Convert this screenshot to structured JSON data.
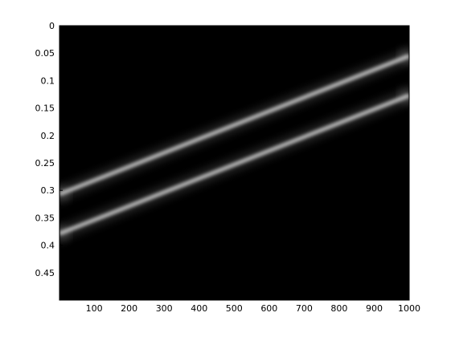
{
  "chart_data": {
    "type": "heatmap",
    "title": "",
    "xlabel": "",
    "ylabel": "",
    "colormap": "gray",
    "background_color": "#000000",
    "band_color": "#bdbdbd",
    "grid": false,
    "legend": "none",
    "xlim": [
      1,
      1000
    ],
    "ylim": [
      0,
      0.5
    ],
    "y_direction": "reversed",
    "x_ticks": [
      100,
      200,
      300,
      400,
      500,
      600,
      700,
      800,
      900,
      1000
    ],
    "x_tick_labels": [
      "100",
      "200",
      "300",
      "400",
      "500",
      "600",
      "700",
      "800",
      "900",
      "1000"
    ],
    "y_ticks": [
      0,
      0.05,
      0.1,
      0.15,
      0.2,
      0.25,
      0.3,
      0.35,
      0.4,
      0.45
    ],
    "y_tick_labels": [
      "0",
      "0.05",
      "0.1",
      "0.15",
      "0.2",
      "0.25",
      "0.3",
      "0.35",
      "0.4",
      "0.45"
    ],
    "series": [
      {
        "x": [
          1,
          1000
        ],
        "y": [
          0.307,
          0.055
        ]
      },
      {
        "x": [
          1,
          1000
        ],
        "y": [
          0.379,
          0.127
        ]
      }
    ]
  }
}
